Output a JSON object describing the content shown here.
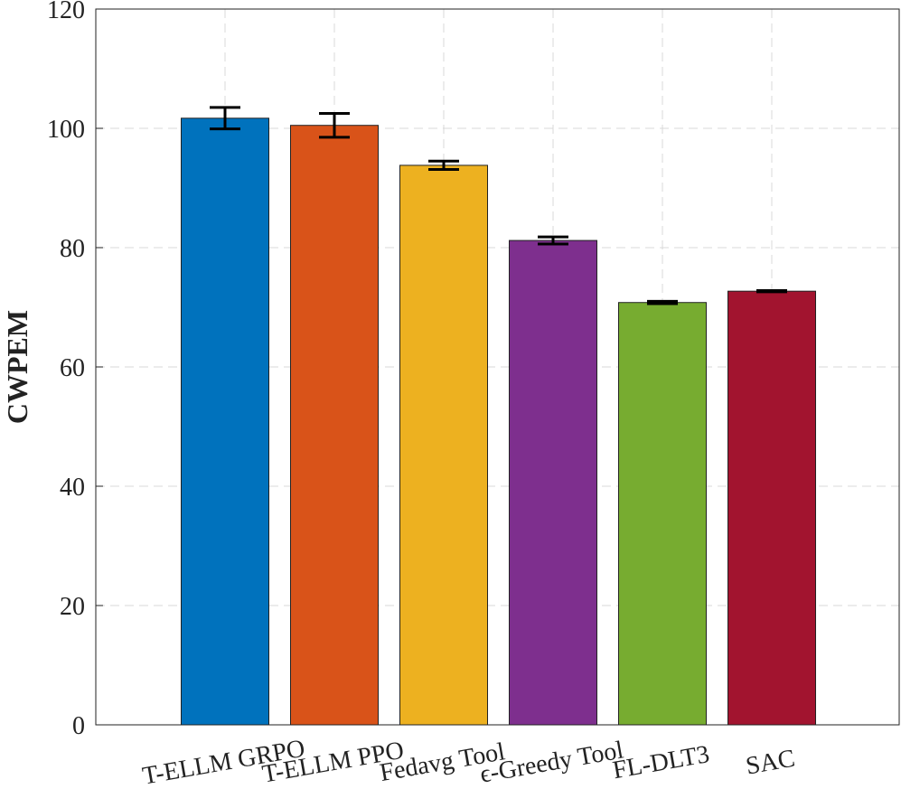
{
  "chart_data": {
    "type": "bar",
    "ylabel": "CWPEM",
    "categories": [
      "T-ELLM GRPO",
      "T-ELLM PPO",
      "Fedavg Tool",
      "ϵ-Greedy Tool",
      "FL-DLT3",
      "SAC"
    ],
    "values": [
      101.7,
      100.5,
      93.8,
      81.2,
      70.8,
      72.7
    ],
    "errors": [
      1.8,
      2.0,
      0.7,
      0.6,
      0.2,
      0.1
    ],
    "colors": [
      "#0072bd",
      "#d95319",
      "#edb120",
      "#7e2f8e",
      "#77ac30",
      "#a2142f"
    ],
    "ylim": [
      0,
      120
    ],
    "yticks": [
      0,
      20,
      40,
      60,
      80,
      100,
      120
    ],
    "grid": true
  }
}
